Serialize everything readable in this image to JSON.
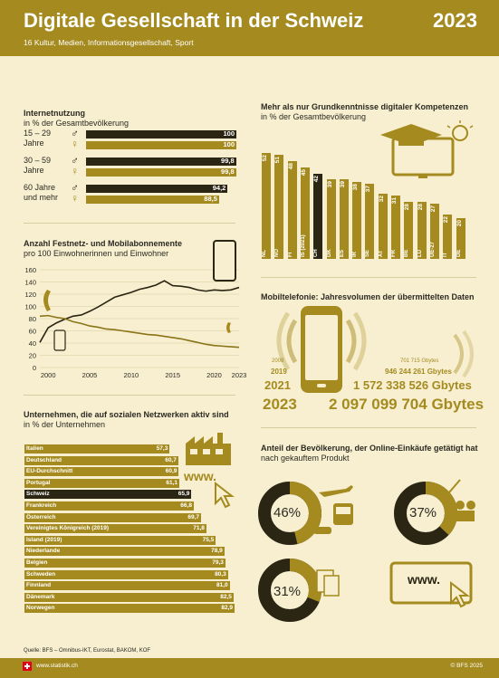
{
  "header": {
    "title": "Digitale Gesellschaft in der Schweiz",
    "subtitle": "16 Kultur, Medien, Informationsgesellschaft, Sport",
    "year": "2023"
  },
  "internet": {
    "title": "Internetnutzung",
    "subtitle": "in % der Gesamtbevölkerung",
    "groups": [
      {
        "label1": "15 – 29",
        "label2": "Jahre",
        "male": 100,
        "male_label": "100",
        "female": 100,
        "female_label": "100"
      },
      {
        "label1": "30 – 59",
        "label2": "Jahre",
        "male": 99.8,
        "male_label": "99,8",
        "female": 99.8,
        "female_label": "99,8"
      },
      {
        "label1": "60 Jahre",
        "label2": "und mehr",
        "male": 94.2,
        "male_label": "94,2",
        "female": 88.5,
        "female_label": "88,5"
      }
    ],
    "male_symbol": "♂",
    "female_symbol": "♀"
  },
  "abos": {
    "title": "Anzahl Festnetz- und Mobilabonnemente",
    "subtitle": "pro 100 Einwohnerinnen und Einwohner",
    "chart_data": {
      "type": "line",
      "x": [
        1999,
        2000,
        2001,
        2002,
        2003,
        2004,
        2005,
        2006,
        2007,
        2008,
        2009,
        2010,
        2011,
        2012,
        2013,
        2014,
        2015,
        2016,
        2017,
        2018,
        2019,
        2020,
        2021,
        2022,
        2023
      ],
      "series": [
        {
          "values": [
            41,
            65,
            73,
            79,
            84,
            86,
            92,
            99,
            107,
            115,
            119,
            123,
            128,
            131,
            135,
            142,
            134,
            133,
            131,
            127,
            125,
            127,
            126,
            127,
            131
          ]
        },
        {
          "values": [
            84,
            85,
            82,
            80,
            75,
            72,
            68,
            66,
            63,
            62,
            60,
            58,
            56,
            54,
            53,
            51,
            49,
            47,
            44,
            41,
            38,
            36,
            35,
            34,
            33
          ]
        }
      ],
      "xticks": [
        "2000",
        "2005",
        "2010",
        "2015",
        "2020",
        "2023"
      ],
      "xtick_values": [
        2000,
        2005,
        2010,
        2015,
        2020,
        2023
      ],
      "yticks": [
        "0",
        "20",
        "40",
        "60",
        "80",
        "100",
        "120",
        "140",
        "160"
      ],
      "ylim": [
        0,
        160
      ],
      "xlim": [
        1999,
        2023
      ]
    }
  },
  "social": {
    "title": "Unternehmen, die auf sozialen Netzwerken aktiv sind",
    "subtitle": "in % der Unternehmen",
    "chart_data": {
      "type": "bar",
      "categories": [
        "Italien",
        "Deutschland",
        "EU-Durchschnitt",
        "Portugal",
        "Schweiz",
        "Frankreich",
        "Österreich",
        "Vereinigtes Königreich (2019)",
        "Island (2019)",
        "Niederlande",
        "Belgien",
        "Schweden",
        "Finnland",
        "Dänemark",
        "Norwegen"
      ],
      "values": [
        57.3,
        60.7,
        60.9,
        61.1,
        65.9,
        66.8,
        69.7,
        71.8,
        75.5,
        78.9,
        79.3,
        80.3,
        81.0,
        82.5,
        82.9
      ],
      "value_labels": [
        "57,3",
        "60,7",
        "60,9",
        "61,1",
        "65,9",
        "66,8",
        "69,7",
        "71,8",
        "75,5",
        "78,9",
        "79,3",
        "80,3",
        "81,0",
        "82,5",
        "82,9"
      ],
      "highlight": "Schweiz"
    },
    "www": "www."
  },
  "kompetenz": {
    "title": "Mehr als nur Grundkenntnisse digitaler Kompetenzen",
    "subtitle": "in % der Gesamtbevölkerung",
    "chart_data": {
      "type": "bar",
      "categories": [
        "NL",
        "NO",
        "FI",
        "IS (2021)",
        "CH",
        "DK",
        "ES",
        "IR",
        "SE",
        "AT",
        "FR",
        "BE",
        "LU",
        "UE-27",
        "IT",
        "DE"
      ],
      "values": [
        52,
        51,
        48,
        45,
        42,
        39,
        39,
        38,
        37,
        32,
        31,
        28,
        28,
        27,
        22,
        20
      ],
      "highlight": "CH"
    }
  },
  "mobil": {
    "title": "Mobiltelefonie: Jahresvolumen der übermittelten Daten",
    "rows": [
      {
        "year": "2008",
        "value": "701 715 Gbytes"
      },
      {
        "year": "2019",
        "value": "946 244 261 Gbytes"
      },
      {
        "year": "2021",
        "value": "1 572 338 526 Gbytes"
      },
      {
        "year": "2023",
        "value": "2 097 099 704 Gbytes"
      }
    ]
  },
  "online": {
    "title": "Anteil der Bevölkerung, der Online-Einkäufe getätigt hat",
    "subtitle": "nach gekauftem Produkt",
    "donuts": [
      {
        "value": 46,
        "label": "46%"
      },
      {
        "value": 37,
        "label": "37%"
      },
      {
        "value": 31,
        "label": "31%"
      }
    ],
    "www": "www."
  },
  "source": "Quelle: BFS – Omnibus-IKT, Eurostat, BAKOM, KOF",
  "footer": {
    "left": "www.statistik.ch",
    "right": "© BFS 2025"
  },
  "colors": {
    "gold": "#a58b1f",
    "dark": "#2b2514",
    "bg": "#f7efd0"
  }
}
